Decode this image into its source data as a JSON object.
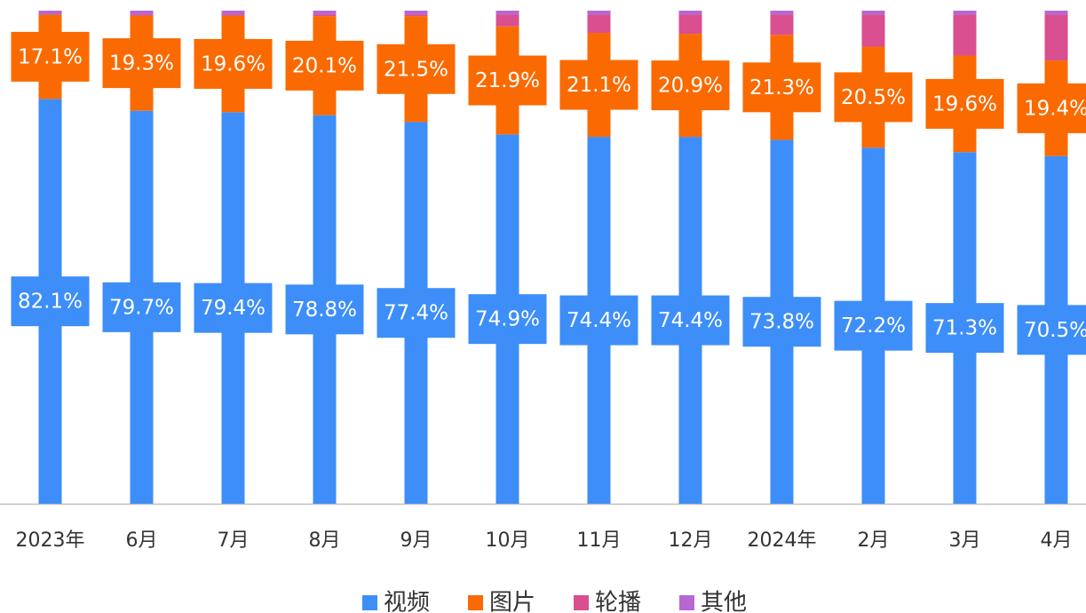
{
  "chart_data": {
    "type": "stacked_bar",
    "categories": [
      "2023年",
      "6月",
      "7月",
      "8月",
      "9月",
      "10月",
      "11月",
      "12月",
      "2024年",
      "2月",
      "3月",
      "4月"
    ],
    "ylim": [
      0,
      100
    ],
    "series": [
      {
        "name": "视频",
        "color": "#3d8ef8",
        "values": [
          82.1,
          79.7,
          79.4,
          78.8,
          77.4,
          74.9,
          74.4,
          74.4,
          73.8,
          72.2,
          71.3,
          70.5
        ],
        "value_labels": [
          "82.1%",
          "79.7%",
          "79.4%",
          "78.8%",
          "77.4%",
          "74.9%",
          "74.4%",
          "74.4%",
          "73.8%",
          "72.2%",
          "71.3%",
          "70.5%"
        ]
      },
      {
        "name": "图片",
        "color": "#fa6a00",
        "values": [
          17.1,
          19.3,
          19.6,
          20.1,
          21.5,
          21.9,
          21.1,
          20.9,
          21.3,
          20.5,
          19.6,
          19.4
        ],
        "value_labels": [
          "17.1%",
          "19.3%",
          "19.6%",
          "20.1%",
          "21.5%",
          "21.9%",
          "21.1%",
          "20.9%",
          "21.3%",
          "20.5%",
          "19.6%",
          "19.4%"
        ]
      },
      {
        "name": "轮播",
        "color": "#d94f8f",
        "values": [
          0,
          0.2,
          0.2,
          0.3,
          0.3,
          2.4,
          3.7,
          3.9,
          4.1,
          6.5,
          8.3,
          9.3
        ]
      },
      {
        "name": "其他",
        "color": "#b767d2",
        "values": [
          0.8,
          0.8,
          0.8,
          0.8,
          0.8,
          0.8,
          0.8,
          0.8,
          0.8,
          0.8,
          0.8,
          0.8
        ]
      }
    ]
  }
}
